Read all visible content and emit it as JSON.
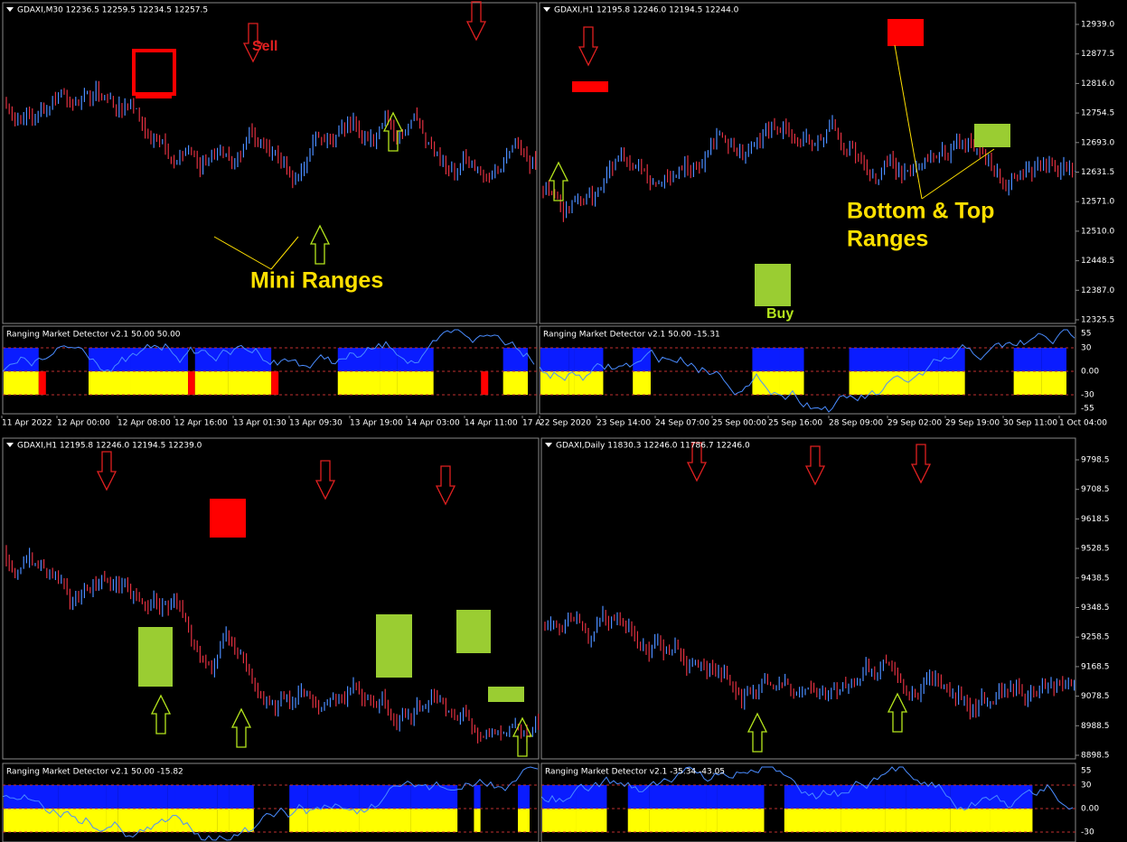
{
  "panels": [
    {
      "header": "GDAXI,M30  12236.5 12259.5 12234.5 12257.5",
      "annotations": [
        "Sell",
        "Mini Ranges"
      ],
      "indicator": {
        "title": "Ranging Market Detector v2.1 50.00 50.00"
      },
      "time_axis": [
        "11 Apr 2022",
        "12 Apr 00:00",
        "12 Apr 08:00",
        "12 Apr 16:00",
        "13 Apr 01:30",
        "13 Apr 09:30",
        "13 Apr 19:00",
        "14 Apr 03:00",
        "14 Apr 11:00",
        "17 A"
      ]
    },
    {
      "header": "GDAXI,H1  12195.8 12246.0 12194.5 12244.0",
      "price_axis": [
        "12939.0",
        "12877.5",
        "12816.0",
        "12754.5",
        "12693.0",
        "12631.5",
        "12571.0",
        "12510.0",
        "12448.5",
        "12387.0",
        "12325.5"
      ],
      "annotations": [
        "Bottom & Top",
        "Ranges",
        "Buy"
      ],
      "indicator": {
        "title": "Ranging Market Detector v2.1 50.00 -15.31",
        "axis": [
          "55",
          "30",
          "0.00",
          "-30",
          "-55"
        ]
      },
      "time_axis": [
        "22 Sep 2020",
        "23 Sep 14:00",
        "24 Sep 07:00",
        "25 Sep 00:00",
        "25 Sep 16:00",
        "28 Sep 09:00",
        "29 Sep 02:00",
        "29 Sep 19:00",
        "30 Sep 11:00",
        "1 Oct 04:00"
      ]
    },
    {
      "header": "GDAXI,H1  12195.8 12246.0 12194.5 12239.0",
      "annotations": [],
      "indicator": {
        "title": "Ranging Market Detector v2.1 50.00 -15.82"
      }
    },
    {
      "header": "GDAXI,Daily  11830.3 12246.0 11786.7 12246.0",
      "price_axis": [
        "9798.5",
        "9708.5",
        "9618.5",
        "9528.5",
        "9438.5",
        "9348.5",
        "9258.5",
        "9168.5",
        "9078.5",
        "8988.5",
        "8898.5"
      ],
      "annotations": [],
      "indicator": {
        "title": "Ranging Market Detector v2.1 -35.34 -43.05",
        "axis": [
          "55",
          "30",
          "0.00",
          "-30"
        ]
      }
    }
  ]
}
